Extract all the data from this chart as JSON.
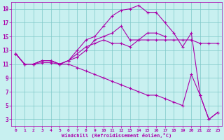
{
  "background_color": "#c8f0f0",
  "grid_color": "#7ec8c8",
  "line_color": "#aa00aa",
  "marker": "+",
  "xlabel": "Windchill (Refroidissement éolien,°C)",
  "tick_color": "#aa00aa",
  "xlim": [
    -0.5,
    23.5
  ],
  "ylim": [
    2,
    20
  ],
  "xticks": [
    0,
    1,
    2,
    3,
    4,
    5,
    6,
    7,
    8,
    9,
    10,
    11,
    12,
    13,
    14,
    15,
    16,
    17,
    18,
    19,
    20,
    21,
    22,
    23
  ],
  "yticks": [
    3,
    5,
    7,
    9,
    11,
    13,
    15,
    17,
    19
  ],
  "line1_x": [
    0,
    1,
    2,
    3,
    4,
    5,
    6,
    7,
    8,
    9,
    10,
    11,
    12,
    13,
    14,
    15,
    16,
    17,
    18,
    19,
    20,
    21,
    22,
    23
  ],
  "line1_y": [
    12.5,
    11.0,
    11.0,
    11.5,
    11.5,
    11.0,
    11.5,
    13.0,
    14.5,
    15.0,
    16.5,
    18.0,
    18.8,
    19.0,
    19.5,
    18.5,
    18.5,
    17.0,
    15.5,
    13.5,
    15.5,
    6.5,
    3.0,
    4.0
  ],
  "line2_x": [
    0,
    1,
    2,
    3,
    4,
    5,
    6,
    7,
    8,
    9,
    10,
    11,
    12,
    13,
    14,
    15,
    16,
    17,
    18,
    19,
    20,
    21,
    22,
    23
  ],
  "line2_y": [
    12.5,
    11.0,
    11.0,
    11.5,
    11.5,
    11.0,
    11.5,
    12.0,
    13.0,
    14.5,
    15.0,
    15.5,
    16.5,
    14.5,
    14.5,
    14.5,
    14.5,
    14.5,
    14.5,
    14.5,
    14.5,
    14.0,
    14.0,
    14.0
  ],
  "line3_x": [
    0,
    1,
    2,
    3,
    4,
    5,
    6,
    7,
    8,
    9,
    10,
    11,
    12,
    13,
    14,
    15,
    16,
    17
  ],
  "line3_y": [
    12.5,
    11.0,
    11.0,
    11.5,
    11.5,
    11.0,
    11.5,
    12.5,
    13.5,
    14.0,
    14.5,
    14.0,
    14.0,
    13.5,
    14.5,
    15.5,
    15.5,
    15.0
  ],
  "line4_x": [
    0,
    1,
    2,
    3,
    4,
    5,
    6,
    7,
    8,
    9,
    10,
    11,
    12,
    13,
    14,
    15,
    16,
    17,
    18,
    19,
    20,
    21,
    22,
    23
  ],
  "line4_y": [
    12.5,
    11.0,
    11.0,
    11.2,
    11.2,
    11.0,
    11.0,
    10.5,
    10.0,
    9.5,
    9.0,
    8.5,
    8.0,
    7.5,
    7.0,
    6.5,
    6.5,
    6.0,
    5.5,
    5.0,
    9.5,
    6.5,
    3.0,
    4.0
  ]
}
